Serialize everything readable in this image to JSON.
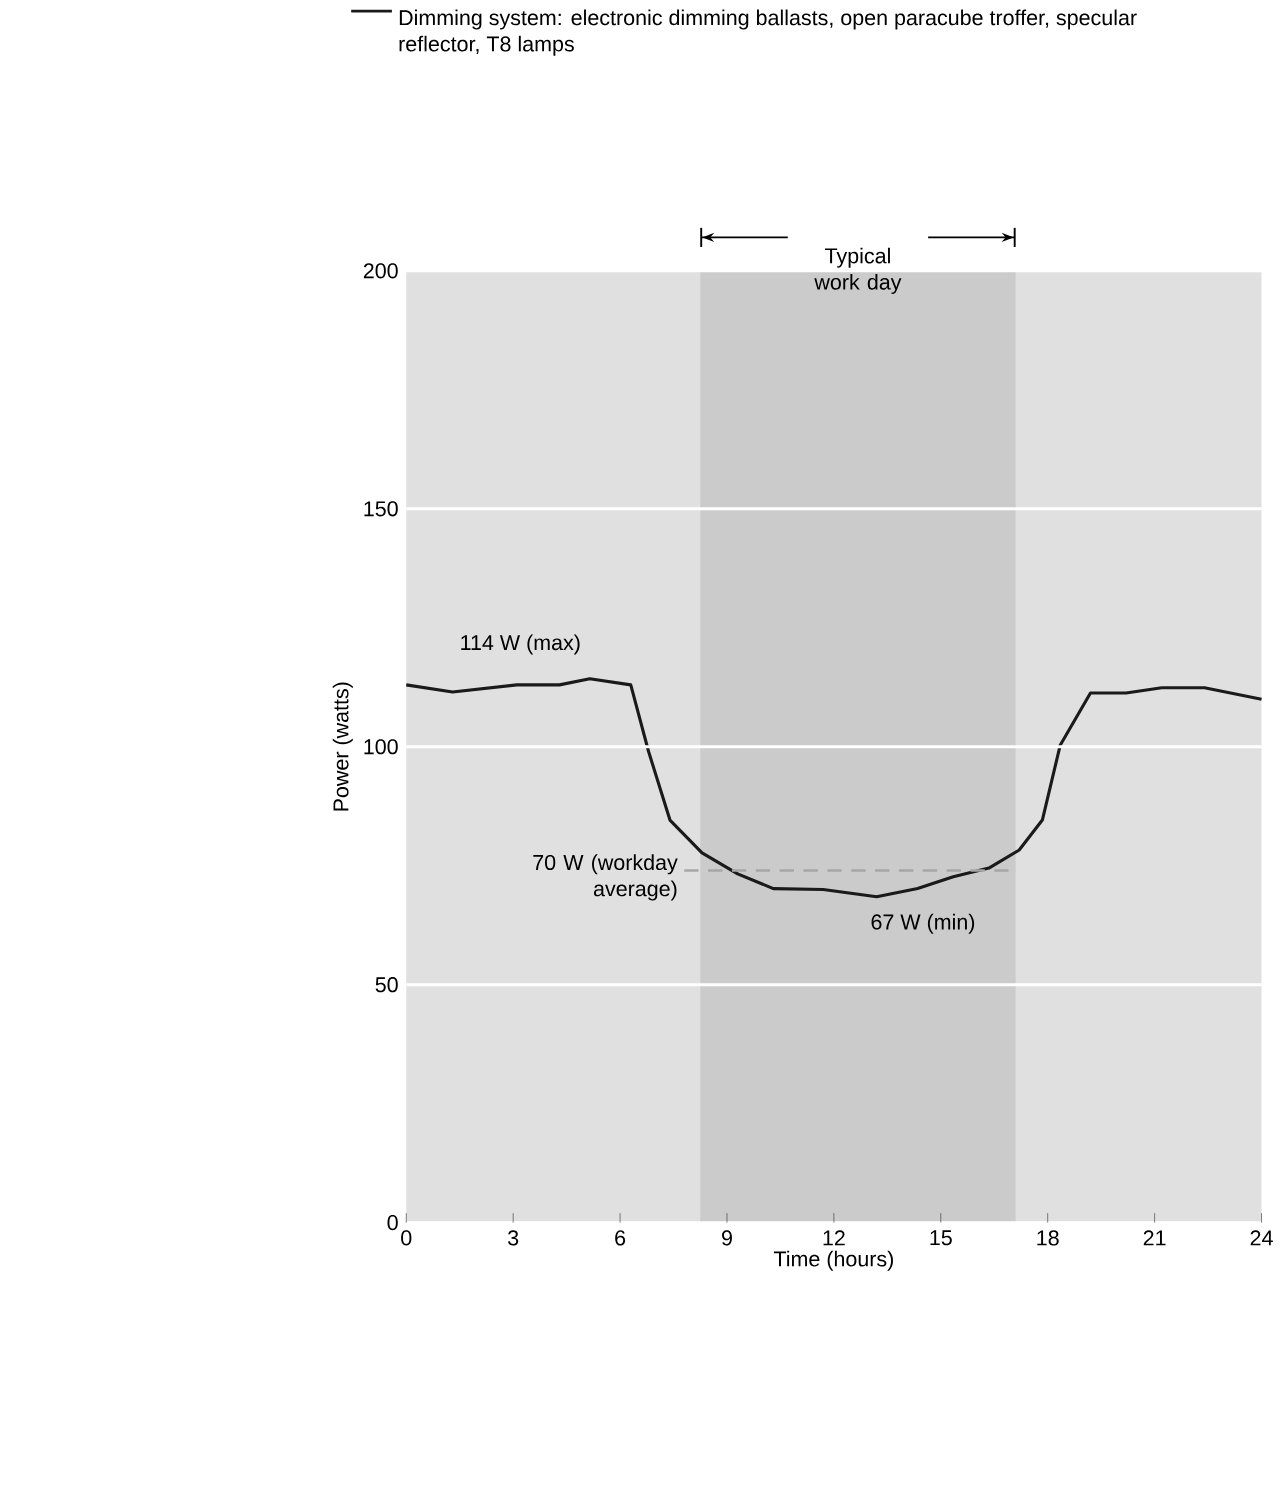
{
  "chart_data": {
    "type": "line",
    "xlabel": "Time (hours)",
    "ylabel": "Power (watts)",
    "xlim": [
      0,
      24
    ],
    "xticks": [
      0,
      3,
      6,
      9,
      12,
      15,
      18,
      21,
      24
    ],
    "ylim": [
      0,
      200
    ],
    "yticks": [
      0,
      50,
      100,
      150,
      200
    ],
    "grid": "y",
    "legend": "top",
    "series": [
      {
        "name": "Dimming system: electronic dimming ballasts, open paracube troffer, specular reflector, T8 lamps",
        "color": "#1a1a1a",
        "x": [
          0,
          1.3,
          3.1,
          4.3,
          5.15,
          6.3,
          6.8,
          7.4,
          8.3,
          9.3,
          10.3,
          11.7,
          13.2,
          14.35,
          15.35,
          16.35,
          17.2,
          17.85,
          18.35,
          19.2,
          20.2,
          21.2,
          22.4,
          24
        ],
        "values": [
          113,
          111.5,
          113,
          113,
          114.3,
          113,
          99,
          84.6,
          77.7,
          73.3,
          70.2,
          70,
          68.5,
          70.2,
          72.7,
          74.5,
          78.3,
          84.6,
          100.3,
          111.3,
          111.3,
          112.4,
          112.4,
          110
        ]
      },
      {
        "type": "line",
        "line_style": "dashed",
        "color": "#a6a6a6",
        "x": [
          7.8,
          16.9
        ],
        "values": [
          74,
          74
        ]
      }
    ],
    "bands": [
      {
        "axis": "x",
        "from": 8.25,
        "to": 17.1,
        "label": "Typical work day",
        "color": "#cbcbcb"
      }
    ],
    "annotations": [
      {
        "text": "114 W (max)",
        "x": 5.15,
        "y": 114.3
      },
      {
        "text": "70 W (workday average)",
        "x": 7.8,
        "y": 74
      },
      {
        "text": "67 W (min)",
        "x": 13.2,
        "y": 68.5
      }
    ]
  }
}
